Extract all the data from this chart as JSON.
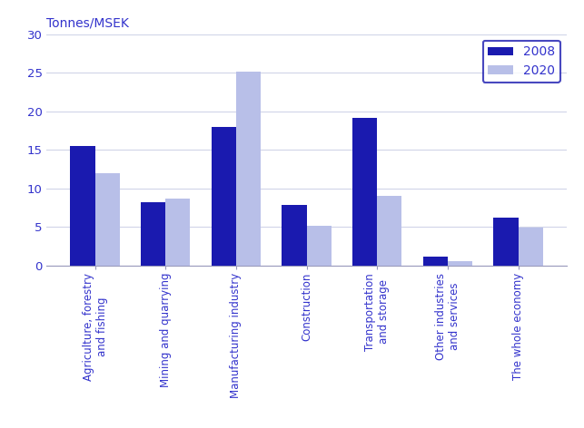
{
  "categories": [
    "Agriculture, forestry\nand fishing",
    "Mining and quarrying",
    "Manufacturing industry",
    "Construction",
    "Transportation\nand storage",
    "Other industries\nand services",
    "The whole economy"
  ],
  "values_2008": [
    15.5,
    8.2,
    18.0,
    7.8,
    19.2,
    1.1,
    6.2
  ],
  "values_2020": [
    12.0,
    8.7,
    25.2,
    5.1,
    9.0,
    0.55,
    4.9
  ],
  "color_2008": "#1a1aaf",
  "color_2020": "#b8bfe8",
  "legend_labels": [
    "2008",
    "2020"
  ],
  "ylabel": "Tonnes/MSEK",
  "ylim": [
    0,
    30
  ],
  "yticks": [
    0,
    5,
    10,
    15,
    20,
    25,
    30
  ],
  "bar_width": 0.35,
  "figsize": [
    6.43,
    4.72
  ],
  "dpi": 100,
  "text_color": "#3333cc",
  "grid_color": "#d0d4e8",
  "spine_color": "#9999bb"
}
